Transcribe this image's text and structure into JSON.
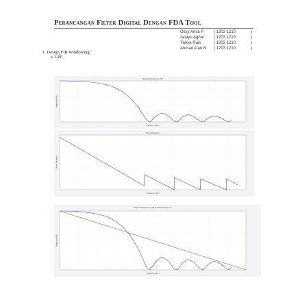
{
  "document": {
    "title": "Perancangan Filter Digital Dengan FDA Tool",
    "authors": [
      {
        "name": "Ossy Anita P",
        "id": "( 1203 1210",
        "close": ")"
      },
      {
        "name": "Jatayu Aghar",
        "id": "( 1203 1210",
        "close": ")"
      },
      {
        "name": "Yahya Rais",
        "id": "( 1203 1210",
        "close": ")"
      },
      {
        "name": "Ahmad A'an N",
        "id": "( 1203 1210",
        "close": ")"
      }
    ],
    "section": "1.   Design FIR Windowing",
    "subsection": "a.   LPF"
  },
  "chart_data": [
    {
      "type": "line",
      "title": "Magnitude Response (dB)",
      "xlabel": "Frequency (kHz)",
      "ylabel": "Magnitude (dB)",
      "series": [
        {
          "color": "#4a56c8",
          "x": [
            0,
            0.05,
            0.1,
            0.15,
            0.2,
            0.25,
            0.3,
            0.34,
            0.38,
            0.42,
            0.455,
            0.47,
            0.485,
            0.5,
            0.52,
            0.55,
            0.58,
            0.615,
            0.63,
            0.645,
            0.66,
            0.69,
            0.72,
            0.755,
            0.77,
            0.785,
            0.8,
            0.83,
            0.86,
            0.895,
            0.91,
            0.925
          ],
          "y": [
            1.0,
            0.997,
            0.99,
            0.975,
            0.95,
            0.91,
            0.83,
            0.73,
            0.58,
            0.37,
            0.13,
            0.03,
            0.0,
            0.06,
            0.15,
            0.22,
            0.16,
            0.02,
            0.0,
            0.05,
            0.12,
            0.18,
            0.13,
            0.02,
            0.0,
            0.05,
            0.1,
            0.15,
            0.11,
            0.02,
            0.0,
            0.05
          ]
        }
      ]
    },
    {
      "type": "line",
      "title": "Phase Response",
      "xlabel": "Frequency (kHz)",
      "ylabel": "Phase (radians)",
      "series": [
        {
          "color": "#4a56c8",
          "x": [
            0,
            0.455,
            0.455,
            0.615,
            0.615,
            0.755,
            0.755,
            0.895,
            0.895,
            0.96
          ],
          "y": [
            0.96,
            0.07,
            0.28,
            0.0,
            0.22,
            0.0,
            0.2,
            0.0,
            0.2,
            0.08
          ]
        }
      ]
    },
    {
      "type": "line",
      "title": "Magnitude Response (dB) and Phase Response",
      "xlabel": "Frequency (kHz)",
      "ylabel": "Magnitude (dB)",
      "series": [
        {
          "color": "#4a56c8",
          "x": [
            0,
            0.05,
            0.1,
            0.15,
            0.2,
            0.25,
            0.3,
            0.34,
            0.38,
            0.42,
            0.455,
            0.47,
            0.485,
            0.5,
            0.52,
            0.55,
            0.58,
            0.615,
            0.63,
            0.645,
            0.66,
            0.69,
            0.72,
            0.755,
            0.77,
            0.785,
            0.8,
            0.83,
            0.86,
            0.895,
            0.91,
            0.925
          ],
          "y": [
            1.0,
            0.997,
            0.99,
            0.975,
            0.95,
            0.91,
            0.83,
            0.73,
            0.58,
            0.37,
            0.13,
            0.03,
            0.0,
            0.06,
            0.15,
            0.22,
            0.16,
            0.02,
            0.0,
            0.05,
            0.12,
            0.18,
            0.13,
            0.02,
            0.0,
            0.05,
            0.1,
            0.15,
            0.11,
            0.02,
            0.0,
            0.05
          ]
        },
        {
          "color": "#3e9a3e",
          "x": [
            0,
            1
          ],
          "y": [
            1.0,
            0.0
          ]
        }
      ]
    }
  ]
}
